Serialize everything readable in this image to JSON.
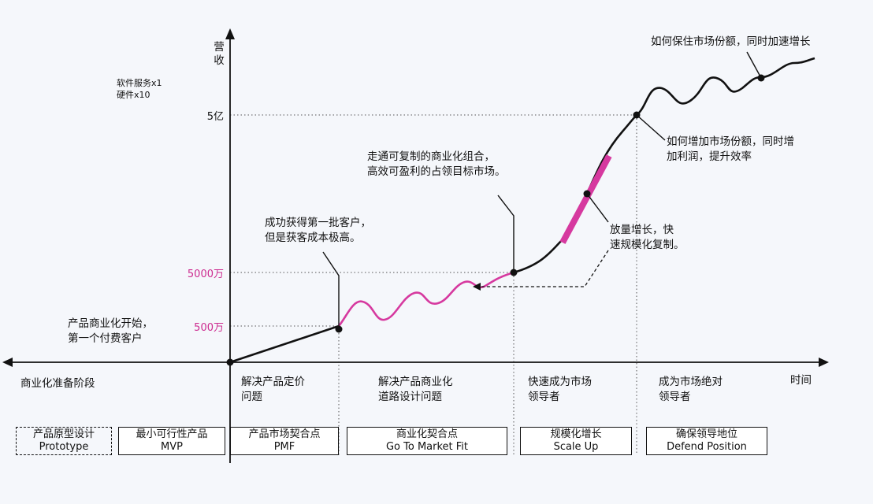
{
  "axis": {
    "y_label": "营收",
    "x_label": "时间"
  },
  "legend": {
    "line1": "软件服务x1",
    "line2": "硬件x10"
  },
  "ticks": [
    {
      "label": "5亿",
      "highlight": false
    },
    {
      "label": "5000万",
      "highlight": true
    },
    {
      "label": "500万",
      "highlight": true
    }
  ],
  "phases": [
    {
      "line1": "商业化准备阶段",
      "line2": ""
    },
    {
      "line1": "解决产品定价",
      "line2": "问题"
    },
    {
      "line1": "解决产品商业化",
      "line2": "道路设计问题"
    },
    {
      "line1": "快速成为市场",
      "line2": "领导者"
    },
    {
      "line1": "成为市场绝对",
      "line2": "领导者"
    }
  ],
  "annotations": [
    {
      "line1": "产品商业化开始，",
      "line2": "第一个付费客户"
    },
    {
      "line1": "成功获得第一批客户，",
      "line2": "但是获客成本极高。"
    },
    {
      "line1": "走通可复制的商业化组合，",
      "line2": "高效可盈利的占领目标市场。"
    },
    {
      "line1": "放量增长，快",
      "line2": "速规模化复制。"
    },
    {
      "line1": "如何增加市场份额，同时增",
      "line2": "加利润，提升效率"
    },
    {
      "line1": "如何保住市场份额，同时加速增长",
      "line2": ""
    }
  ],
  "stages": [
    {
      "cn": "产品原型设计",
      "en": "Prototype",
      "dashed": true
    },
    {
      "cn": "最小可行性产品",
      "en": "MVP",
      "dashed": false
    },
    {
      "cn": "产品市场契合点",
      "en": "PMF",
      "dashed": false
    },
    {
      "cn": "商业化契合点",
      "en": "Go To Market Fit",
      "dashed": false
    },
    {
      "cn": "规模化增长",
      "en": "Scale Up",
      "dashed": false
    },
    {
      "cn": "确保领导地位",
      "en": "Defend Position",
      "dashed": false
    }
  ],
  "colors": {
    "accent": "#d6399f",
    "line": "#111111",
    "background": "#f5f7fb"
  }
}
